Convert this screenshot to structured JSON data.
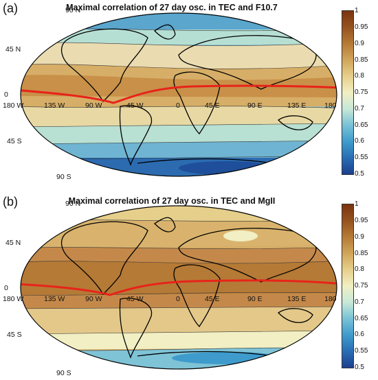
{
  "panels": [
    {
      "letter": "(a)",
      "title": "Maximal correlation of 27 day osc. in TEC and F10.7",
      "lat_labels": [
        "90 N",
        "45 N",
        "0",
        "45 S",
        "90 S"
      ],
      "lon_labels": [
        "180 W",
        "135 W",
        "90 W",
        "45 W",
        "0",
        "45 E",
        "90 E",
        "135 E",
        "180"
      ],
      "colorbar_ticks": [
        "1",
        "0.95",
        "0.9",
        "0.85",
        "0.8",
        "0.75",
        "0.7",
        "0.65",
        "0.6",
        "0.55",
        "0.5"
      ]
    },
    {
      "letter": "(b)",
      "title": "Maximal correlation of 27 day osc. in TEC and MgII",
      "lat_labels": [
        "90 N",
        "45 N",
        "0",
        "45 S",
        "90 S"
      ],
      "lon_labels": [
        "180 W",
        "135 W",
        "90 W",
        "45 W",
        "0",
        "45 E",
        "90 E",
        "135 E",
        "180"
      ],
      "colorbar_ticks": [
        "1",
        "0.95",
        "0.9",
        "0.85",
        "0.8",
        "0.75",
        "0.7",
        "0.65",
        "0.6",
        "0.55",
        "0.5"
      ]
    }
  ],
  "colors": {
    "equator_line": "#e8231a",
    "high": "#7a3310",
    "low": "#1c3f8f"
  }
}
